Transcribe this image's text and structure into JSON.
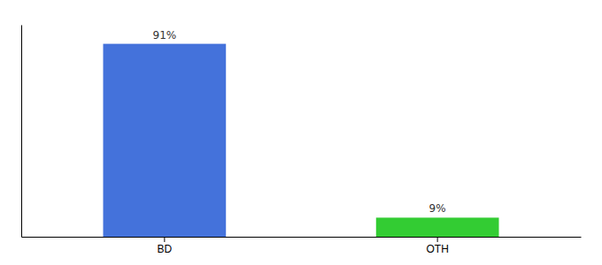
{
  "chart_data": {
    "type": "bar",
    "categories": [
      "BD",
      "OTH"
    ],
    "values": [
      91,
      9
    ],
    "value_labels": [
      "91%",
      "9%"
    ],
    "colors": [
      "#4472db",
      "#33cc33"
    ],
    "ylim": [
      0,
      100
    ],
    "data_labels": true,
    "tick_labels": "x"
  }
}
